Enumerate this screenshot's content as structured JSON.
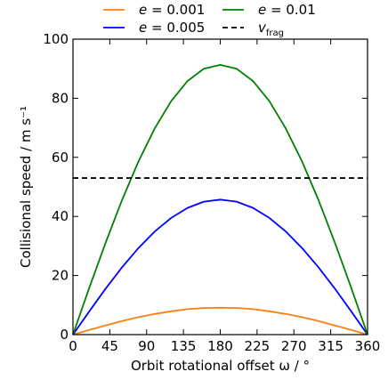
{
  "chart_data": {
    "type": "line",
    "xlabel": "Orbit rotational offset ω / °",
    "ylabel": "Collisional speed / m s⁻¹",
    "xlim": [
      0,
      360
    ],
    "ylim": [
      0,
      100
    ],
    "xticks": [
      0,
      45,
      90,
      135,
      180,
      225,
      270,
      315,
      360
    ],
    "yticks": [
      0,
      20,
      40,
      60,
      80,
      100
    ],
    "grid": false,
    "legend_position": "top-outside",
    "x": [
      0,
      20,
      40,
      60,
      80,
      100,
      120,
      140,
      160,
      180,
      200,
      220,
      240,
      260,
      280,
      300,
      320,
      340,
      360
    ],
    "series": [
      {
        "name": "e = 0.001",
        "color": "#ff7f0e",
        "style": "solid",
        "values": [
          0,
          1.6,
          3.1,
          4.6,
          5.9,
          7.0,
          7.9,
          8.6,
          9.0,
          9.1,
          9.0,
          8.6,
          7.9,
          7.0,
          5.9,
          4.6,
          3.1,
          1.6,
          0
        ]
      },
      {
        "name": "e = 0.005",
        "color": "#0000ff",
        "style": "solid",
        "values": [
          0,
          7.9,
          15.6,
          22.8,
          29.3,
          34.9,
          39.5,
          42.9,
          45.0,
          45.7,
          45.0,
          42.9,
          39.5,
          34.9,
          29.3,
          22.8,
          15.6,
          7.9,
          0
        ]
      },
      {
        "name": "e = 0.01",
        "color": "#008000",
        "style": "solid",
        "values": [
          0,
          15.9,
          31.2,
          45.6,
          58.6,
          69.8,
          79.0,
          85.8,
          90.0,
          91.3,
          90.0,
          85.8,
          79.0,
          69.8,
          58.6,
          45.6,
          31.2,
          15.9,
          0
        ]
      }
    ],
    "reference_line": {
      "name_main": "v",
      "name_sub": "frag",
      "y": 53,
      "color": "#000000",
      "style": "dashed"
    }
  }
}
